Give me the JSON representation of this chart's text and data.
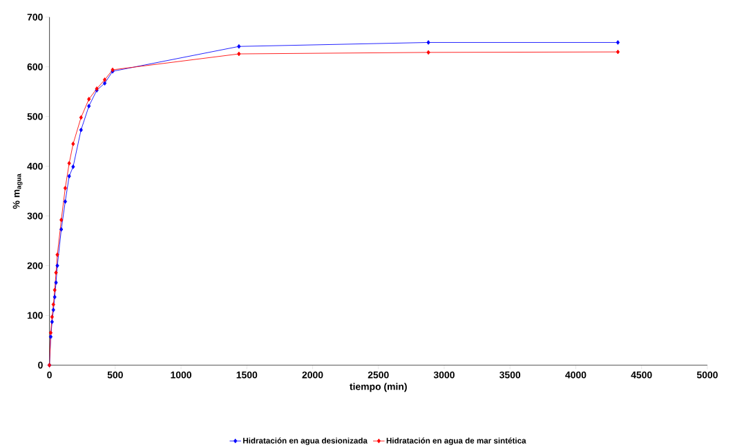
{
  "chart_data": {
    "type": "line",
    "xlabel": "tiempo (min)",
    "ylabel": "% m$_{agua}$",
    "xlim": [
      0,
      5000
    ],
    "xticks": [
      0,
      500,
      1000,
      1500,
      2000,
      2500,
      3000,
      3500,
      4000,
      4500,
      5000
    ],
    "ylim": [
      0,
      700
    ],
    "yticks": [
      0,
      100,
      200,
      300,
      400,
      500,
      600,
      700
    ],
    "x": [
      0,
      10,
      20,
      30,
      40,
      50,
      60,
      90,
      120,
      150,
      180,
      240,
      300,
      360,
      420,
      480,
      1440,
      2880,
      4320
    ],
    "series": [
      {
        "name": "Hidratación en agua desionizada",
        "color": "#0000ff",
        "values": [
          0,
          57,
          87,
          111,
          137,
          166,
          200,
          273,
          329,
          380,
          399,
          473,
          521,
          553,
          567,
          591,
          641,
          649,
          649
        ]
      },
      {
        "name": "Hidratación en agua de mar sintética",
        "color": "#ff0000",
        "values": [
          0,
          65,
          97,
          122,
          151,
          186,
          222,
          292,
          356,
          406,
          445,
          498,
          535,
          556,
          574,
          594,
          626,
          629,
          630
        ]
      }
    ],
    "marker": "diamond",
    "legend": "bottom",
    "grid": false
  }
}
